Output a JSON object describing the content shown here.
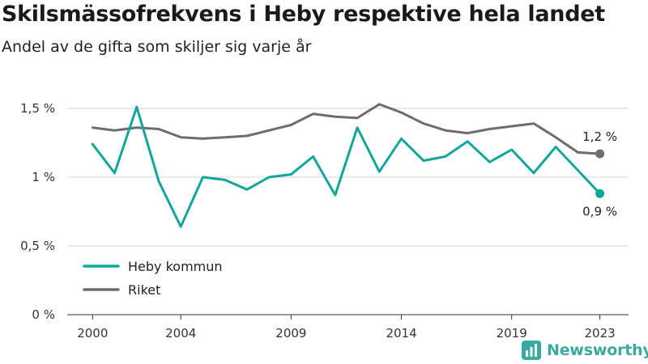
{
  "title": "Skilsmässofrekvens i Heby respektive hela landet",
  "subtitle": "Andel av de gifta som skiljer sig varje år",
  "brand": {
    "name": "Newsworthy",
    "icon": "newsworthy-logo-icon"
  },
  "colors": {
    "heby": "#10a69a",
    "riket": "#6e6c71",
    "grid": "#d4d4d4",
    "brand": "#3aa9a0"
  },
  "chart_data": {
    "type": "line",
    "title": "",
    "xlabel": "",
    "ylabel": "",
    "x": [
      2000,
      2001,
      2002,
      2003,
      2004,
      2005,
      2006,
      2007,
      2008,
      2009,
      2010,
      2011,
      2012,
      2013,
      2014,
      2015,
      2016,
      2017,
      2018,
      2019,
      2020,
      2021,
      2022,
      2023
    ],
    "xticks": [
      2000,
      2004,
      2009,
      2014,
      2019,
      2023
    ],
    "xtick_labels": [
      "2000",
      "2004",
      "2009",
      "2014",
      "2019",
      "2023"
    ],
    "ylim": [
      0,
      1.5
    ],
    "yticks": [
      0,
      0.5,
      1,
      1.5
    ],
    "ytick_labels": [
      "0 %",
      "0,5 %",
      "1 %",
      "1,5 %"
    ],
    "grid": "horizontal",
    "legend_position": "bottom-left",
    "series": [
      {
        "name": "Heby kommun",
        "color": "#10a69a",
        "values": [
          1.24,
          1.03,
          1.51,
          0.97,
          0.64,
          1.0,
          0.98,
          0.91,
          1.0,
          1.02,
          1.15,
          0.87,
          1.36,
          1.04,
          1.28,
          1.12,
          1.15,
          1.26,
          1.11,
          1.2,
          1.03,
          1.22,
          1.05,
          0.88
        ],
        "end_label": "0,9 %"
      },
      {
        "name": "Riket",
        "color": "#6e6c71",
        "values": [
          1.36,
          1.34,
          1.36,
          1.35,
          1.29,
          1.28,
          1.29,
          1.3,
          1.34,
          1.38,
          1.46,
          1.44,
          1.43,
          1.53,
          1.47,
          1.39,
          1.34,
          1.32,
          1.35,
          1.37,
          1.39,
          1.29,
          1.18,
          1.17
        ],
        "end_label": "1,2 %"
      }
    ]
  }
}
